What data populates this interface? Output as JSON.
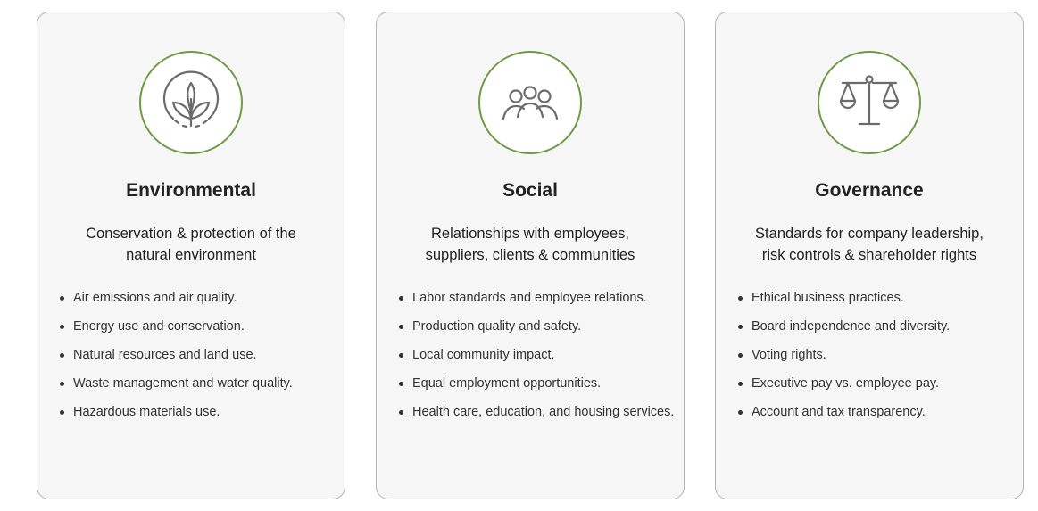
{
  "cards": [
    {
      "icon": "leaf-sprout-icon",
      "title": "Environmental",
      "subtitle_lines": [
        "Conservation & protection of the",
        "natural environment"
      ],
      "items": [
        "Air emissions and air quality.",
        "Energy use and conservation.",
        "Natural resources and land use.",
        "Waste management and water quality.",
        "Hazardous materials use."
      ]
    },
    {
      "icon": "people-group-icon",
      "title": "Social",
      "subtitle_lines": [
        "Relationships with employees,",
        "suppliers, clients & communities"
      ],
      "items": [
        "Labor standards and employee relations.",
        "Production quality and safety.",
        "Local community impact.",
        "Equal employment opportunities.",
        "Health care, education, and housing services."
      ]
    },
    {
      "icon": "scales-icon",
      "title": "Governance",
      "subtitle_lines": [
        "Standards for company leadership,",
        "risk controls & shareholder rights"
      ],
      "items": [
        "Ethical business practices.",
        "Board independence and diversity.",
        "Voting rights.",
        "Executive pay vs. employee pay.",
        "Account and tax transparency."
      ]
    }
  ],
  "colors": {
    "accent_green": "#6e9a44",
    "card_background": "#f7f6f7",
    "card_border": "#b3b3b3",
    "icon_stroke": "#6b6b6b",
    "text": "#222222"
  }
}
